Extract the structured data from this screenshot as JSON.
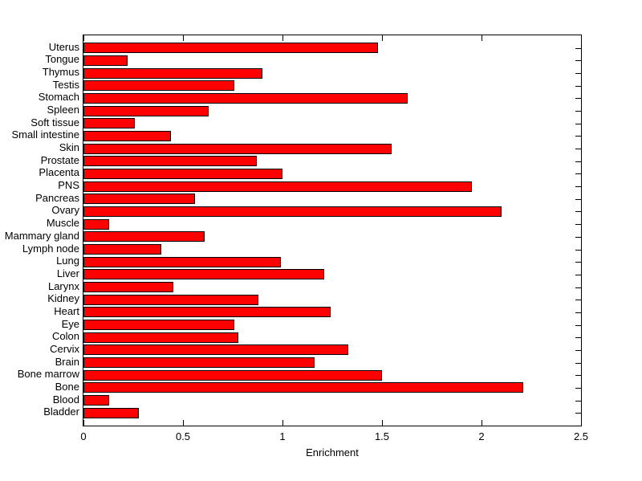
{
  "figure": {
    "background": "#ffffff",
    "axis_color": "#000000",
    "text_color": "#000000"
  },
  "chart_data": {
    "type": "bar",
    "orientation": "horizontal",
    "title": "",
    "xlabel": "Enrichment",
    "ylabel": "",
    "xlim": [
      0,
      2.5
    ],
    "xticks": [
      0,
      0.5,
      1,
      1.5,
      2,
      2.5
    ],
    "xtick_labels": [
      "0",
      "0.5",
      "1",
      "1.5",
      "2",
      "2.5"
    ],
    "grid": false,
    "bar_color": "#ff0000",
    "bar_edge_color": "#000000",
    "categories_top_to_bottom": [
      "Uterus",
      "Tongue",
      "Thymus",
      "Testis",
      "Stomach",
      "Spleen",
      "Soft tissue",
      "Small intestine",
      "Skin",
      "Prostate",
      "Placenta",
      "PNS",
      "Pancreas",
      "Ovary",
      "Muscle",
      "Mammary gland",
      "Lymph node",
      "Lung",
      "Liver",
      "Larynx",
      "Kidney",
      "Heart",
      "Eye",
      "Colon",
      "Cervix",
      "Brain",
      "Bone marrow",
      "Bone",
      "Blood",
      "Bladder"
    ],
    "values": [
      1.48,
      0.22,
      0.9,
      0.76,
      1.63,
      0.63,
      0.26,
      0.44,
      1.55,
      0.87,
      1.0,
      1.95,
      0.56,
      2.1,
      0.13,
      0.61,
      0.39,
      0.99,
      1.21,
      0.45,
      0.88,
      1.24,
      0.76,
      0.78,
      1.33,
      1.16,
      1.5,
      2.21,
      0.13,
      0.28
    ]
  }
}
